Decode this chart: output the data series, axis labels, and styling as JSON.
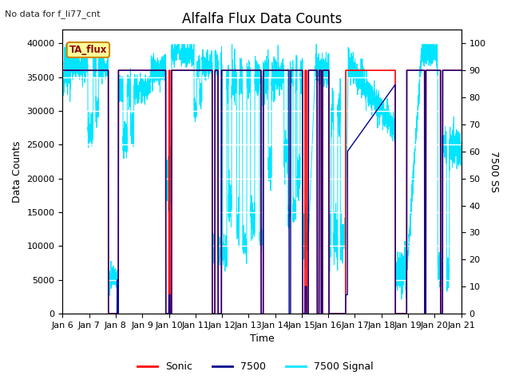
{
  "title": "Alfalfa Flux Data Counts",
  "subtitle": "No data for f_li77_cnt",
  "xlabel": "Time",
  "ylabel_left": "Data Counts",
  "ylabel_right": "7500 SS",
  "annotation": "TA_flux",
  "xlim": [
    6,
    21
  ],
  "ylim_left": [
    0,
    42000
  ],
  "ylim_right": [
    0,
    105
  ],
  "yticks_left": [
    0,
    5000,
    10000,
    15000,
    20000,
    25000,
    30000,
    35000,
    40000
  ],
  "yticks_right": [
    0,
    10,
    20,
    30,
    40,
    50,
    60,
    70,
    80,
    90,
    100
  ],
  "xtick_labels": [
    "Jan 6",
    "Jan 7",
    "Jan 8",
    "Jan 9",
    "Jan 10",
    "Jan 11",
    "Jan 12",
    "Jan 13",
    "Jan 14",
    "Jan 15",
    "Jan 16",
    "Jan 17",
    "Jan 18",
    "Jan 19",
    "Jan 20",
    "Jan 21"
  ],
  "color_sonic": "#ff0000",
  "color_7500": "#00008b",
  "color_7500signal": "#00e5ff",
  "color_annotation_bg": "#ffff99",
  "color_annotation_border": "#cc8800",
  "plot_bg_color": "#e8e8e8",
  "grid_color": "#ffffff",
  "title_fontsize": 12,
  "label_fontsize": 9,
  "tick_fontsize": 8
}
